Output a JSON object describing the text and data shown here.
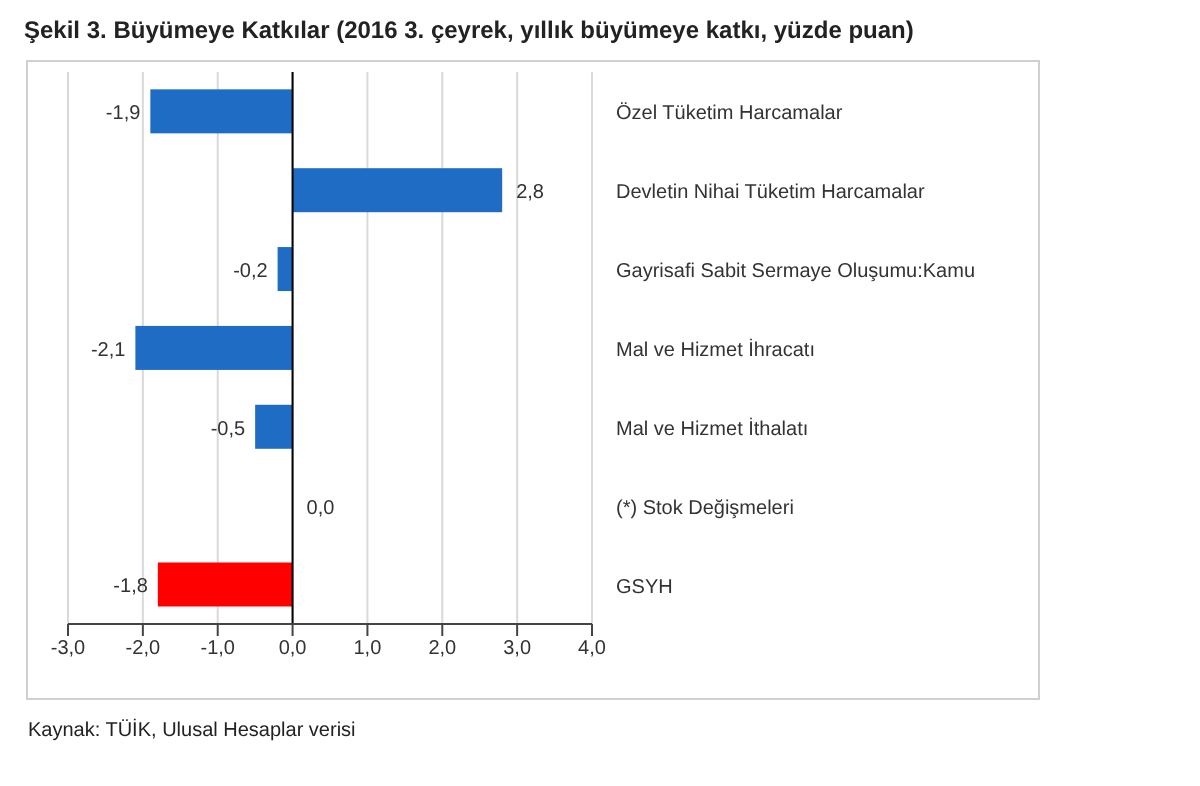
{
  "chart_data": {
    "type": "bar",
    "orientation": "horizontal",
    "title": "Şekil 3. Büyümeye Katkılar (2016 3. çeyrek, yıllık büyümeye katkı, yüzde puan)",
    "categories": [
      "Özel Tüketim Harcamalar",
      "Devletin Nihai Tüketim Harcamalar",
      "Gayrisafi Sabit Sermaye Oluşumu:Kamu",
      "Mal ve Hizmet İhracatı",
      "Mal ve Hizmet İthalatı",
      "(*) Stok Değişmeleri",
      "GSYH"
    ],
    "values": [
      -1.9,
      2.8,
      -0.2,
      -2.1,
      -0.5,
      0.0,
      -1.8
    ],
    "colors": [
      "#1f6cc4",
      "#1f6cc4",
      "#1f6cc4",
      "#1f6cc4",
      "#1f6cc4",
      "#1f6cc4",
      "#ff0000"
    ],
    "value_labels": [
      "-1,9",
      "2,8",
      "-0,2",
      "-2,1",
      "-0,5",
      "0,0",
      "-1,8"
    ],
    "xlim": [
      -3,
      4
    ],
    "xticks": [
      {
        "value": -3,
        "label": "-3,0"
      },
      {
        "value": -2,
        "label": "-2,0"
      },
      {
        "value": -1,
        "label": "-1,0"
      },
      {
        "value": 0,
        "label": "0,0"
      },
      {
        "value": 1,
        "label": "1,0"
      },
      {
        "value": 2,
        "label": "2,0"
      },
      {
        "value": 3,
        "label": "3,0"
      },
      {
        "value": 4,
        "label": "4,0"
      }
    ],
    "grid": "x",
    "annotations": [
      "Kaynak: TÜİK, Ulusal Hesaplar verisi"
    ]
  }
}
